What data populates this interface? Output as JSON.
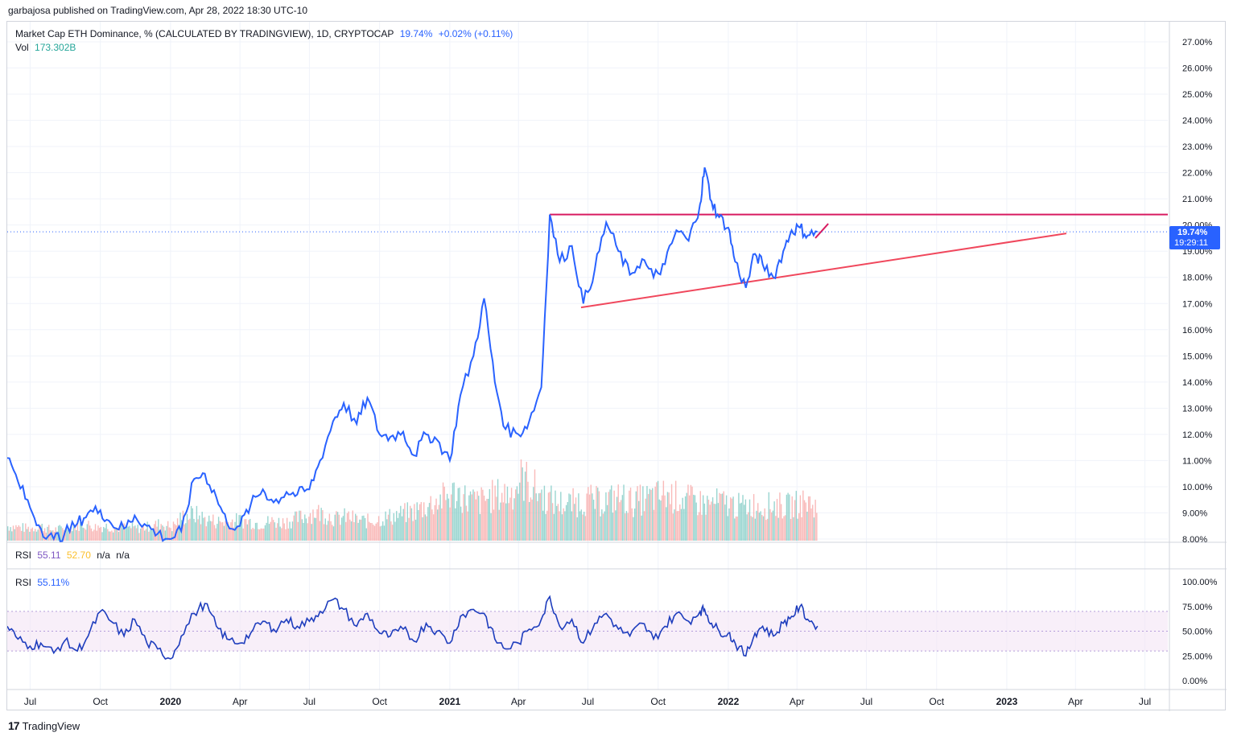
{
  "header": {
    "title": "garbajosa published on TradingView.com, Apr 28, 2022 18:30 UTC-10"
  },
  "legend": {
    "main_title": "Market Cap ETH Dominance, % (CALCULATED BY TRADINGVIEW), 1D, CRYPTOCAP",
    "main_value": "19.74%",
    "main_change": "+0.02% (+0.11%)",
    "vol_label": "Vol",
    "vol_value": "173.302B",
    "rsi1_label": "RSI",
    "rsi1_value": "55.11",
    "rsi1_value2": "52.70",
    "rsi1_na1": "n/a",
    "rsi1_na2": "n/a",
    "rsi2_label": "RSI",
    "rsi2_value": "55.11%"
  },
  "price_tag": {
    "value": "19.74%",
    "countdown": "19:29:11"
  },
  "footer": {
    "brand": "TradingView"
  },
  "colors": {
    "line": "#2962ff",
    "resistance": "#d81b60",
    "support": "#f0475c",
    "vol_up": "#80cbc4",
    "vol_down": "#f7a9a7",
    "rsi_line": "#1e3dbd",
    "rsi_band": "#f3e5f5"
  },
  "chart_data": [
    {
      "type": "line",
      "title": "Market Cap ETH Dominance, % (CALCULATED BY TRADINGVIEW), 1D, CRYPTOCAP",
      "x_ticks": [
        "Jul",
        "Oct",
        "2020",
        "Apr",
        "Jul",
        "Oct",
        "2021",
        "Apr",
        "Jul",
        "Oct",
        "2022",
        "Apr",
        "Jul",
        "Oct",
        "2023",
        "Apr",
        "Jul"
      ],
      "y_ticks": [
        "8.00%",
        "9.00%",
        "10.00%",
        "11.00%",
        "12.00%",
        "13.00%",
        "14.00%",
        "15.00%",
        "16.00%",
        "17.00%",
        "18.00%",
        "19.00%",
        "20.00%",
        "21.00%",
        "22.00%",
        "23.00%",
        "24.00%",
        "25.00%",
        "26.00%",
        "27.00%"
      ],
      "ylim": [
        8,
        27.5
      ],
      "scale": "linear",
      "series": [
        {
          "x": [
            "2019-06-01",
            "2019-06-15",
            "2019-07-01",
            "2019-07-15",
            "2019-08-01",
            "2019-08-15",
            "2019-09-01",
            "2019-09-15",
            "2019-10-01",
            "2019-10-15",
            "2019-11-01",
            "2019-11-15",
            "2019-12-01",
            "2019-12-15",
            "2020-01-01",
            "2020-01-15",
            "2020-02-01",
            "2020-02-15",
            "2020-03-01",
            "2020-03-15",
            "2020-04-01",
            "2020-04-15",
            "2020-05-01",
            "2020-05-15",
            "2020-06-01",
            "2020-06-15",
            "2020-07-01",
            "2020-07-15",
            "2020-08-01",
            "2020-08-15",
            "2020-09-01",
            "2020-09-15",
            "2020-10-01",
            "2020-10-15",
            "2020-11-01",
            "2020-11-15",
            "2020-12-01",
            "2020-12-15",
            "2021-01-01",
            "2021-01-15",
            "2021-02-01",
            "2021-02-15",
            "2021-03-01",
            "2021-03-15",
            "2021-04-01",
            "2021-04-15",
            "2021-05-01",
            "2021-05-12",
            "2021-05-25",
            "2021-06-10",
            "2021-06-25",
            "2021-07-10",
            "2021-07-25",
            "2021-08-10",
            "2021-08-25",
            "2021-09-10",
            "2021-09-25",
            "2021-10-10",
            "2021-10-25",
            "2021-11-10",
            "2021-11-25",
            "2021-12-01",
            "2021-12-10",
            "2021-12-20",
            "2022-01-01",
            "2022-01-10",
            "2022-01-24",
            "2022-02-05",
            "2022-02-15",
            "2022-03-01",
            "2022-03-14",
            "2022-03-25",
            "2022-04-05",
            "2022-04-15",
            "2022-04-28"
          ],
          "y": [
            11.1,
            10.2,
            9.2,
            8.4,
            8.0,
            8.2,
            8.6,
            9.0,
            9.1,
            8.6,
            8.4,
            8.9,
            8.5,
            8.2,
            8.0,
            8.3,
            10.3,
            10.5,
            9.6,
            8.6,
            8.5,
            9.3,
            9.9,
            9.4,
            9.8,
            9.7,
            9.9,
            11.0,
            12.5,
            13.2,
            12.4,
            13.4,
            12.0,
            11.9,
            12.1,
            11.2,
            12.0,
            11.8,
            11.0,
            13.5,
            15.0,
            17.2,
            14.0,
            12.2,
            12.0,
            12.5,
            13.8,
            20.4,
            18.6,
            19.2,
            17.0,
            18.3,
            20.1,
            19.0,
            18.1,
            18.7,
            18.0,
            18.5,
            19.8,
            19.4,
            20.8,
            22.2,
            20.9,
            20.3,
            19.9,
            18.6,
            17.6,
            18.9,
            18.5,
            18.0,
            19.0,
            19.8,
            19.9,
            19.6,
            19.74
          ]
        }
      ],
      "annotations": [
        {
          "type": "horizontal_line",
          "value": 20.4,
          "x_start": "2021-05-12",
          "x_end": "2023-07-31",
          "color": "#d81b60"
        },
        {
          "type": "trend_line",
          "from": [
            "2021-06-22",
            16.85
          ],
          "to": [
            "2023-03-20",
            19.68
          ],
          "color": "#f0475c"
        },
        {
          "type": "trend_line",
          "from": [
            "2022-04-25",
            19.5
          ],
          "to": [
            "2022-05-12",
            20.05
          ],
          "color": "#d81b60"
        }
      ]
    },
    {
      "type": "bar",
      "title": "Vol",
      "last_value": "173.302B",
      "note": "volume histogram overlay, relative heights",
      "values": [
        0.3,
        0.28,
        0.25,
        0.3,
        0.22,
        0.25,
        0.3,
        0.35,
        0.28,
        0.3,
        0.26,
        0.28,
        0.25,
        0.3,
        0.35,
        0.28,
        0.5,
        0.55,
        0.45,
        0.4,
        0.38,
        0.42,
        0.4,
        0.35,
        0.4,
        0.38,
        0.42,
        0.5,
        0.6,
        0.55,
        0.45,
        0.5,
        0.42,
        0.4,
        0.45,
        0.5,
        0.55,
        0.6,
        0.7,
        0.8,
        0.9,
        1.0,
        0.85,
        0.8,
        0.9,
        0.95,
        1.0,
        1.3,
        1.1,
        0.9,
        0.8,
        0.75,
        0.8,
        0.85,
        0.8,
        0.85,
        0.9,
        0.8,
        0.85,
        0.9,
        0.95,
        0.9,
        0.85,
        0.8,
        0.75,
        0.8,
        0.75,
        0.7,
        0.75,
        0.7,
        0.75,
        0.7,
        0.75,
        0.8,
        0.7
      ]
    },
    {
      "type": "line",
      "title": "RSI",
      "y_ticks": [
        "0.00%",
        "25.00%",
        "50.00%",
        "75.00%",
        "100.00%"
      ],
      "ylim": [
        0,
        100
      ],
      "bands": [
        30,
        50,
        70
      ],
      "last_value": "55.11%",
      "series": [
        {
          "x": [
            "2019-06-01",
            "2019-06-15",
            "2019-07-01",
            "2019-07-15",
            "2019-08-01",
            "2019-08-15",
            "2019-09-01",
            "2019-09-15",
            "2019-10-01",
            "2019-10-15",
            "2019-11-01",
            "2019-11-15",
            "2019-12-01",
            "2019-12-15",
            "2020-01-01",
            "2020-01-15",
            "2020-02-01",
            "2020-02-15",
            "2020-03-01",
            "2020-03-15",
            "2020-04-01",
            "2020-04-15",
            "2020-05-01",
            "2020-05-15",
            "2020-06-01",
            "2020-06-15",
            "2020-07-01",
            "2020-07-15",
            "2020-08-01",
            "2020-08-15",
            "2020-09-01",
            "2020-09-15",
            "2020-10-01",
            "2020-10-15",
            "2020-11-01",
            "2020-11-15",
            "2020-12-01",
            "2020-12-15",
            "2021-01-01",
            "2021-01-15",
            "2021-02-01",
            "2021-02-15",
            "2021-03-01",
            "2021-03-15",
            "2021-04-01",
            "2021-04-15",
            "2021-05-01",
            "2021-05-12",
            "2021-05-25",
            "2021-06-10",
            "2021-06-25",
            "2021-07-10",
            "2021-07-25",
            "2021-08-10",
            "2021-08-25",
            "2021-09-10",
            "2021-09-25",
            "2021-10-10",
            "2021-10-25",
            "2021-11-10",
            "2021-11-25",
            "2021-12-01",
            "2021-12-10",
            "2021-12-20",
            "2022-01-01",
            "2022-01-10",
            "2022-01-24",
            "2022-02-05",
            "2022-02-15",
            "2022-03-01",
            "2022-03-14",
            "2022-03-25",
            "2022-04-05",
            "2022-04-15",
            "2022-04-28"
          ],
          "y": [
            55,
            42,
            35,
            38,
            28,
            40,
            30,
            45,
            70,
            60,
            45,
            62,
            38,
            32,
            22,
            45,
            68,
            78,
            55,
            42,
            38,
            48,
            60,
            52,
            62,
            55,
            60,
            70,
            82,
            72,
            55,
            68,
            48,
            45,
            52,
            40,
            58,
            50,
            38,
            65,
            72,
            68,
            42,
            32,
            38,
            52,
            62,
            85,
            55,
            62,
            38,
            58,
            68,
            52,
            45,
            58,
            42,
            55,
            68,
            60,
            70,
            72,
            58,
            50,
            48,
            38,
            25,
            48,
            55,
            45,
            58,
            65,
            75,
            62,
            55.11
          ]
        }
      ]
    }
  ]
}
